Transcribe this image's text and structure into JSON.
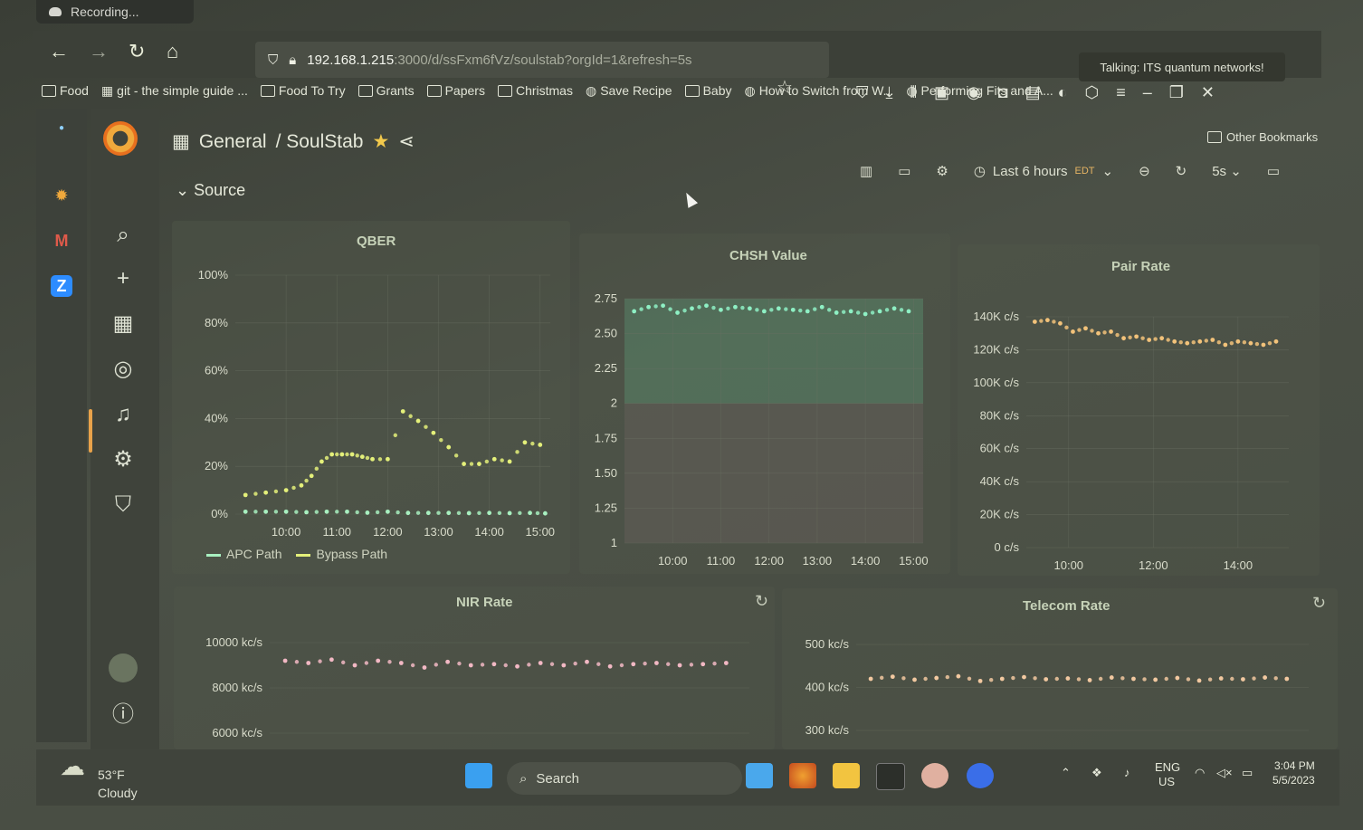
{
  "recording": {
    "label": "Recording..."
  },
  "browser": {
    "url_host": "192.168.1.215",
    "url_path": ":3000/d/ssFxm6fVz/soulstab?orgId=1&refresh=5s",
    "talking": "Talking: ITS quantum networks!",
    "bookmarks": [
      "Food",
      "git - the simple guide ...",
      "Food To Try",
      "Grants",
      "Papers",
      "Christmas",
      "Save Recipe",
      "Baby",
      "How to Switch from W...",
      "Performing Fits and A..."
    ],
    "other_bookmarks": "Other Bookmarks"
  },
  "dashboard": {
    "folder": "General",
    "title": "/ SoulStab",
    "section": "Source",
    "time_range": "Last 6 hours",
    "timezone": "EDT",
    "refresh": "5s"
  },
  "colors": {
    "apc": "#a8f0c0",
    "bypass": "#e4f07a",
    "chsh": "#8ef0c4",
    "pair": "#f2c27a",
    "nir": "#f2b8c4",
    "telecom": "#f2c8a0"
  },
  "panels": {
    "qber": {
      "title": "QBER",
      "legend": [
        "APC Path",
        "Bypass Path"
      ]
    },
    "chsh": {
      "title": "CHSH Value"
    },
    "pair": {
      "title": "Pair Rate"
    },
    "nir": {
      "title": "NIR Rate"
    },
    "telecom": {
      "title": "Telecom Rate"
    }
  },
  "chart_data": [
    {
      "type": "scatter",
      "title": "QBER",
      "ylim": [
        0,
        100
      ],
      "yticks": [
        "0%",
        "20%",
        "40%",
        "60%",
        "80%",
        "100%"
      ],
      "xticks": [
        "10:00",
        "11:00",
        "12:00",
        "13:00",
        "14:00",
        "15:00"
      ],
      "series": [
        {
          "name": "APC Path",
          "x": [
            9.2,
            9.6,
            10,
            10.4,
            10.8,
            11.2,
            11.6,
            12,
            12.4,
            12.8,
            13.2,
            13.6,
            14,
            14.4,
            14.8,
            15.1
          ],
          "y": [
            1,
            1,
            1,
            0.8,
            1,
            1,
            0.6,
            1,
            0.5,
            0.5,
            0.5,
            0.4,
            0.5,
            0.4,
            0.5,
            0.3
          ]
        },
        {
          "name": "Bypass Path",
          "x": [
            9.2,
            9.6,
            10,
            10.3,
            10.5,
            10.7,
            10.9,
            11.1,
            11.3,
            11.5,
            11.7,
            12,
            12.3,
            12.6,
            12.9,
            13.2,
            13.5,
            13.8,
            14.1,
            14.4,
            14.7,
            15
          ],
          "y": [
            8,
            9,
            10,
            12,
            16,
            22,
            25,
            25,
            25,
            24,
            23,
            23,
            43,
            39,
            34,
            28,
            21,
            21,
            23,
            22,
            30,
            29
          ]
        }
      ]
    },
    {
      "type": "scatter",
      "title": "CHSH Value",
      "ylim": [
        1,
        2.75
      ],
      "yticks": [
        "1",
        "1.25",
        "1.50",
        "1.75",
        "2",
        "2.25",
        "2.50",
        "2.75"
      ],
      "xticks": [
        "10:00",
        "11:00",
        "12:00",
        "13:00",
        "14:00",
        "15:00"
      ],
      "series": [
        {
          "name": "",
          "x": [
            9.2,
            9.5,
            9.8,
            10.1,
            10.4,
            10.7,
            11,
            11.3,
            11.6,
            11.9,
            12.2,
            12.5,
            12.8,
            13.1,
            13.4,
            13.7,
            14,
            14.3,
            14.6,
            14.9
          ],
          "y": [
            2.66,
            2.69,
            2.7,
            2.65,
            2.68,
            2.7,
            2.67,
            2.69,
            2.68,
            2.66,
            2.68,
            2.67,
            2.66,
            2.69,
            2.65,
            2.66,
            2.64,
            2.66,
            2.68,
            2.66
          ]
        }
      ]
    },
    {
      "type": "scatter",
      "title": "Pair Rate",
      "ylim": [
        0,
        140000
      ],
      "yticks": [
        "0 c/s",
        "20K c/s",
        "40K c/s",
        "60K c/s",
        "80K c/s",
        "100K c/s",
        "120K c/s",
        "140K c/s"
      ],
      "xticks": [
        "10:00",
        "12:00",
        "14:00"
      ],
      "series": [
        {
          "name": "",
          "x": [
            9.2,
            9.5,
            9.8,
            10.1,
            10.4,
            10.7,
            11,
            11.3,
            11.6,
            11.9,
            12.2,
            12.5,
            12.8,
            13.1,
            13.4,
            13.7,
            14,
            14.3,
            14.6,
            14.9
          ],
          "y": [
            137000,
            138000,
            136000,
            131000,
            133000,
            130000,
            131000,
            127000,
            128000,
            126000,
            127000,
            125000,
            124000,
            125000,
            126000,
            123000,
            125000,
            124000,
            123000,
            125000
          ]
        }
      ]
    },
    {
      "type": "scatter",
      "title": "NIR Rate",
      "yticks": [
        "6000 kc/s",
        "8000 kc/s",
        "10000 kc/s"
      ],
      "series": [
        {
          "name": "",
          "x": [
            9.2,
            9.5,
            9.8,
            10.1,
            10.4,
            10.7,
            11,
            11.3,
            11.6,
            11.9,
            12.2,
            12.5,
            12.8,
            13.1,
            13.4,
            13.7,
            14,
            14.3,
            14.6,
            14.9
          ],
          "y": [
            9200,
            9100,
            9250,
            9000,
            9200,
            9100,
            8900,
            9150,
            9000,
            9050,
            8950,
            9100,
            9000,
            9150,
            8950,
            9050,
            9100,
            9000,
            9050,
            9100
          ]
        }
      ]
    },
    {
      "type": "scatter",
      "title": "Telecom Rate",
      "yticks": [
        "300 kc/s",
        "400 kc/s",
        "500 kc/s"
      ],
      "series": [
        {
          "name": "",
          "x": [
            9.2,
            9.5,
            9.8,
            10.1,
            10.4,
            10.7,
            11,
            11.3,
            11.6,
            11.9,
            12.2,
            12.5,
            12.8,
            13.1,
            13.4,
            13.7,
            14,
            14.3,
            14.6,
            14.9
          ],
          "y": [
            420,
            425,
            418,
            422,
            426,
            415,
            420,
            424,
            419,
            421,
            417,
            423,
            420,
            418,
            422,
            416,
            421,
            419,
            423,
            420
          ]
        }
      ]
    }
  ],
  "taskbar": {
    "temp": "53°F",
    "weather": "Cloudy",
    "search": "Search",
    "lang1": "ENG",
    "lang2": "US",
    "time": "3:04 PM",
    "date": "5/5/2023"
  }
}
